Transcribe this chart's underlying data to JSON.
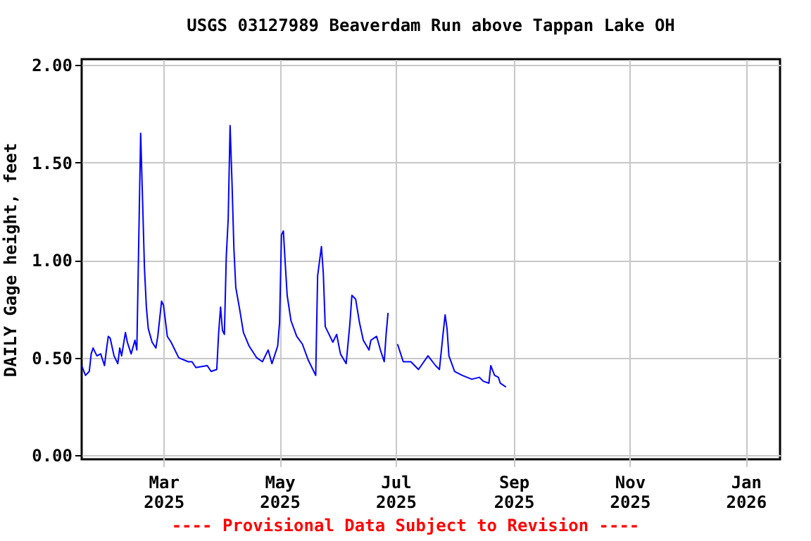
{
  "chart_data": {
    "type": "line",
    "title": "USGS 03127989 Beaverdam Run above Tappan Lake OH",
    "ylabel": "DAILY Gage height, feet",
    "annotations": [
      "---- Provisional Data Subject to Revision ----"
    ],
    "x": [
      "2025-01-17",
      "2025-01-19",
      "2025-01-21",
      "2025-01-22",
      "2025-01-23",
      "2025-01-25",
      "2025-01-27",
      "2025-01-29",
      "2025-01-30",
      "2025-01-31",
      "2025-02-01",
      "2025-02-03",
      "2025-02-05",
      "2025-02-06",
      "2025-02-07",
      "2025-02-09",
      "2025-02-10",
      "2025-02-12",
      "2025-02-14",
      "2025-02-15",
      "2025-02-16",
      "2025-02-17",
      "2025-02-18",
      "2025-02-19",
      "2025-02-20",
      "2025-02-21",
      "2025-02-23",
      "2025-02-25",
      "2025-02-26",
      "2025-02-28",
      "2025-03-01",
      "2025-03-03",
      "2025-03-05",
      "2025-03-09",
      "2025-03-14",
      "2025-03-16",
      "2025-03-18",
      "2025-03-24",
      "2025-03-26",
      "2025-03-29",
      "2025-03-30",
      "2025-03-31",
      "2025-04-01",
      "2025-04-02",
      "2025-04-03",
      "2025-04-04",
      "2025-04-05",
      "2025-04-06",
      "2025-04-07",
      "2025-04-08",
      "2025-04-10",
      "2025-04-12",
      "2025-04-15",
      "2025-04-19",
      "2025-04-22",
      "2025-04-25",
      "2025-04-27",
      "2025-04-30",
      "2025-05-01",
      "2025-05-02",
      "2025-05-03",
      "2025-05-04",
      "2025-05-05",
      "2025-05-07",
      "2025-05-10",
      "2025-05-13",
      "2025-05-16",
      "2025-05-20",
      "2025-05-21",
      "2025-05-23",
      "2025-05-24",
      "2025-05-25",
      "2025-05-27",
      "2025-05-29",
      "2025-05-31",
      "2025-06-02",
      "2025-06-05",
      "2025-06-07",
      "2025-06-08",
      "2025-06-10",
      "2025-06-12",
      "2025-06-14",
      "2025-06-17",
      "2025-06-18",
      "2025-06-21",
      "2025-06-23",
      "2025-06-25",
      "2025-06-26",
      "2025-06-27",
      "2025-06-29",
      "2025-07-02",
      "2025-07-05",
      "2025-07-09",
      "2025-07-13",
      "2025-07-18",
      "2025-07-22",
      "2025-07-24",
      "2025-07-26",
      "2025-07-27",
      "2025-07-28",
      "2025-07-29",
      "2025-08-01",
      "2025-08-05",
      "2025-08-10",
      "2025-08-14",
      "2025-08-16",
      "2025-08-19",
      "2025-08-20",
      "2025-08-22",
      "2025-08-24",
      "2025-08-25",
      "2025-08-28"
    ],
    "series": [
      {
        "color": "#0000ff",
        "values": [
          0.46,
          0.41,
          0.43,
          0.52,
          0.55,
          0.51,
          0.52,
          0.46,
          0.54,
          0.61,
          0.6,
          0.51,
          0.47,
          0.55,
          0.51,
          0.63,
          0.58,
          0.52,
          0.59,
          0.54,
          1.1,
          1.65,
          1.31,
          0.96,
          0.76,
          0.65,
          0.58,
          0.55,
          0.61,
          0.79,
          0.77,
          0.61,
          0.58,
          0.5,
          0.48,
          0.48,
          0.45,
          0.46,
          0.43,
          0.44,
          0.63,
          0.76,
          0.64,
          0.62,
          1.02,
          1.21,
          1.69,
          1.4,
          1.06,
          0.86,
          0.75,
          0.63,
          0.56,
          0.5,
          0.48,
          0.54,
          0.47,
          0.56,
          0.68,
          1.13,
          1.15,
          0.98,
          0.82,
          0.69,
          0.61,
          0.57,
          0.49,
          0.41,
          0.92,
          1.07,
          0.93,
          0.66,
          0.62,
          0.58,
          0.62,
          0.52,
          0.47,
          0.68,
          0.82,
          0.8,
          0.68,
          0.59,
          0.54,
          0.59,
          0.61,
          0.54,
          0.48,
          0.62,
          0.73,
          null,
          0.57,
          0.48,
          0.48,
          0.44,
          0.51,
          0.46,
          0.44,
          0.63,
          0.72,
          0.65,
          0.51,
          0.43,
          0.41,
          0.39,
          0.4,
          0.38,
          0.37,
          0.46,
          0.41,
          0.4,
          0.37,
          0.35
        ]
      }
    ],
    "xlim": [
      "2025-01-17",
      "2026-01-19"
    ],
    "xticks": [
      {
        "value": "2025-03-01",
        "label": "Mar\n2025"
      },
      {
        "value": "2025-05-01",
        "label": "May\n2025"
      },
      {
        "value": "2025-07-01",
        "label": "Jul\n2025"
      },
      {
        "value": "2025-09-01",
        "label": "Sep\n2025"
      },
      {
        "value": "2025-11-01",
        "label": "Nov\n2025"
      },
      {
        "value": "2026-01-01",
        "label": "Jan\n2026"
      }
    ],
    "ylim": [
      -0.02,
      2.03
    ],
    "yticks": [
      {
        "value": 0,
        "label": "0.00"
      },
      {
        "value": 0.5,
        "label": "0.50"
      },
      {
        "value": 1,
        "label": "1.00"
      },
      {
        "value": 1.5,
        "label": "1.50"
      },
      {
        "value": 2,
        "label": "2.00"
      }
    ],
    "grid": true,
    "line_style": "solid",
    "marker": "none"
  }
}
